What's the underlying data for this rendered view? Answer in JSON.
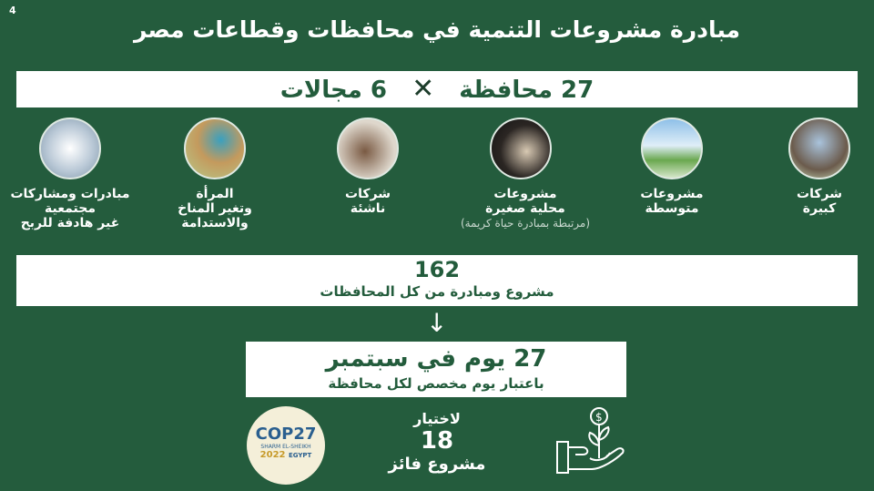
{
  "page_number": "4",
  "title": "مبادرة مشروعات التنمية في محافظات وقطاعات مصر",
  "summary": {
    "governorates": "27 محافظة",
    "times": "✕",
    "fields": "6 مجالات"
  },
  "categories": [
    {
      "line1": "شركات",
      "line2": "كبيرة",
      "image": "skyscrapers"
    },
    {
      "line1": "مشروعات",
      "line2": "متوسطة",
      "image": "growing-plants"
    },
    {
      "line1": "مشروعات",
      "line2": "محلية صغيرة",
      "note": "(مرتبطة بمبادرة حياة كريمة)",
      "image": "craftsman"
    },
    {
      "line1": "شركات",
      "line2": "ناشئة",
      "image": "startup-team"
    },
    {
      "line1": "المرأة",
      "line2": "وتغير المناخ",
      "line3": "والاستدامة",
      "image": "woman"
    },
    {
      "line1": "مبادرات ومشاركات",
      "line2": "مجتمعية",
      "line3": "غير هادفة للربح",
      "image": "paper-people"
    }
  ],
  "projects": {
    "count": "162",
    "label": "مشروع ومبادرة من كل المحافظات"
  },
  "arrow": "↓",
  "days": {
    "title": "27 يوم في سبتمبر",
    "label": "باعتبار يوم مخصص لكل محافظة"
  },
  "winners": {
    "line1": "لاختيار",
    "count": "18",
    "line2": "مشروع فائز"
  },
  "cop_logo": {
    "name": "COP27",
    "place": "SHARM EL-SHEIKH",
    "year": "2022",
    "country": "EGYPT"
  },
  "colors": {
    "background": "#245c3d",
    "text_on_white": "#235c3c"
  }
}
